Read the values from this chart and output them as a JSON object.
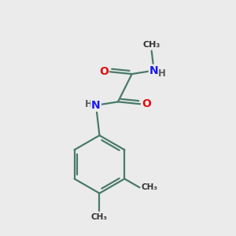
{
  "background_color": "#ebebeb",
  "bond_color": "#4a7a6a",
  "bond_width": 1.6,
  "atom_colors": {
    "C": "#000000",
    "N": "#1a1aee",
    "O": "#dd1111",
    "H": "#5a5a5a"
  },
  "figsize": [
    3.0,
    3.0
  ],
  "dpi": 100,
  "xlim": [
    0,
    10
  ],
  "ylim": [
    0,
    10
  ]
}
